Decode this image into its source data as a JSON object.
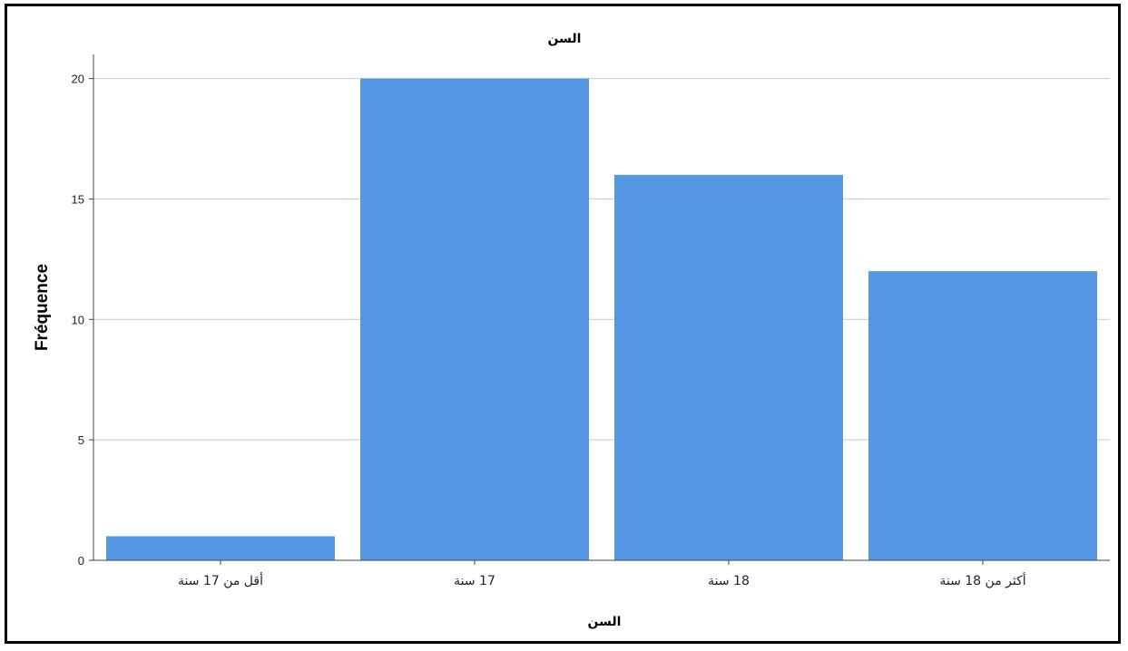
{
  "chart_data": {
    "type": "bar",
    "title": "السن",
    "xlabel": "السن",
    "ylabel": "Fréquence",
    "categories": [
      "أقل من 17 سنة",
      "17 سنة",
      "18 سنة",
      "أكثر من 18 سنة"
    ],
    "values": [
      1,
      20,
      16,
      12
    ],
    "ylim": [
      0,
      21
    ],
    "yticks": [
      0,
      5,
      10,
      15,
      20
    ],
    "grid": true,
    "colors": {
      "bar": "#5597e3",
      "grid": "#c8c8c8",
      "axis": "#444444"
    }
  }
}
